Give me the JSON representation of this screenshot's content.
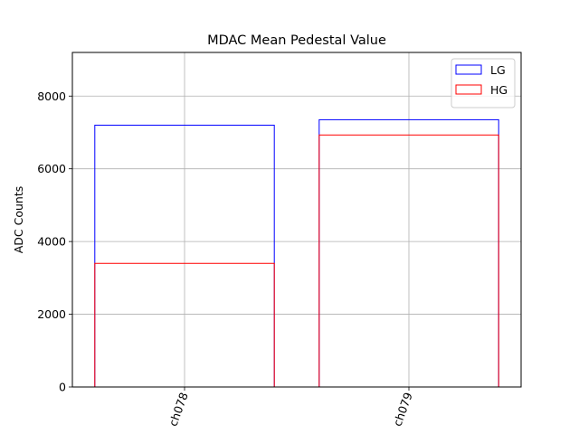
{
  "chart_data": {
    "type": "bar",
    "title": "MDAC Mean Pedestal Value",
    "xlabel": "",
    "ylabel": "ADC Counts",
    "categories": [
      "ch078",
      "ch079"
    ],
    "series": [
      {
        "name": "LG",
        "values": [
          7200,
          7350
        ],
        "color": "#0000ff"
      },
      {
        "name": "HG",
        "values": [
          3400,
          6930
        ],
        "color": "#ff0000"
      }
    ],
    "ylim": [
      0,
      9200
    ],
    "yticks": [
      0,
      2000,
      4000,
      6000,
      8000
    ],
    "bar_fill": "none",
    "grid": true,
    "legend": "top-right",
    "xtick_rotation_deg": 70
  }
}
